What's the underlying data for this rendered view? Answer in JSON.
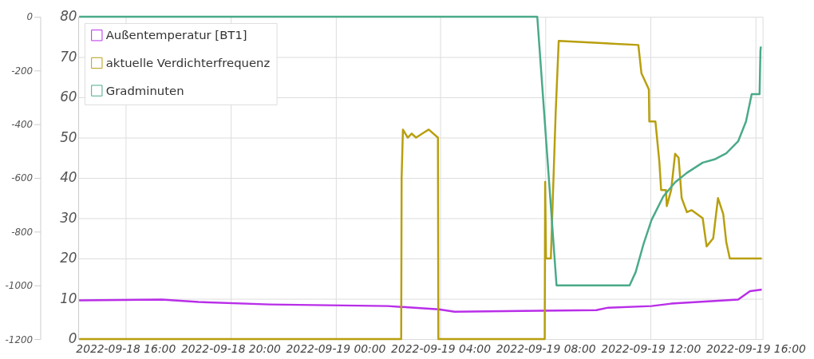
{
  "chart_data": {
    "type": "line",
    "xlim": [
      "2022-09-18T14:12",
      "2022-09-19T16:16"
    ],
    "xticks": [
      {
        "value": "2022-09-18T16:00",
        "label": "2022-09-18 16:00"
      },
      {
        "value": "2022-09-18T20:00",
        "label": "2022-09-18 20:00"
      },
      {
        "value": "2022-09-19T00:00",
        "label": "2022-09-19 00:00"
      },
      {
        "value": "2022-09-19T04:00",
        "label": "2022-09-19 04:00"
      },
      {
        "value": "2022-09-19T08:00",
        "label": "2022-09-19 08:00"
      },
      {
        "value": "2022-09-19T12:00",
        "label": "2022-09-19 12:00"
      },
      {
        "value": "2022-09-19T16:00",
        "label": "2022-09-19 16:00"
      }
    ],
    "ylim": [
      0,
      80
    ],
    "yticks": [
      0,
      10,
      20,
      30,
      40,
      50,
      60,
      70,
      80
    ],
    "y2lim": [
      -1200,
      0
    ],
    "y2ticks": [
      -1200,
      -1000,
      -800,
      -600,
      -400,
      -200,
      0
    ],
    "grid": true,
    "legend": "top left",
    "marker": "none",
    "line_style": "solid",
    "series": [
      {
        "name": "Außentemperatur [BT1]",
        "color": "#b92ee8",
        "x": [
          "2022-09-18T14:14",
          "2022-09-18T17:23",
          "2022-09-18T18:47",
          "2022-09-18T21:29",
          "2022-09-19T01:59",
          "2022-09-19T02:30",
          "2022-09-19T03:56",
          "2022-09-19T04:32",
          "2022-09-19T07:05",
          "2022-09-19T09:56",
          "2022-09-19T10:23",
          "2022-09-19T12:02",
          "2022-09-19T12:47",
          "2022-09-19T15:20",
          "2022-09-19T15:47",
          "2022-09-19T16:14"
        ],
        "values": [
          9.6,
          9.8,
          9.2,
          8.6,
          8.2,
          8.0,
          7.4,
          6.8,
          7.0,
          7.2,
          7.8,
          8.2,
          8.8,
          9.8,
          11.9,
          12.3
        ]
      },
      {
        "name": "aktuelle Verdichterfrequenz",
        "color": "#b89f0e",
        "x": [
          "2022-09-18T14:14",
          "2022-09-19T02:30",
          "2022-09-19T02:31",
          "2022-09-19T02:34",
          "2022-09-19T02:45",
          "2022-09-19T02:54",
          "2022-09-19T03:04",
          "2022-09-19T03:18",
          "2022-09-19T03:33",
          "2022-09-19T03:54",
          "2022-09-19T03:55",
          "2022-09-19T07:58",
          "2022-09-19T07:59",
          "2022-09-19T08:01",
          "2022-09-19T08:12",
          "2022-09-19T08:23",
          "2022-09-19T08:30",
          "2022-09-19T11:32",
          "2022-09-19T11:39",
          "2022-09-19T11:56",
          "2022-09-19T11:57",
          "2022-09-19T12:11",
          "2022-09-19T12:20",
          "2022-09-19T12:24",
          "2022-09-19T12:35",
          "2022-09-19T12:37",
          "2022-09-19T12:47",
          "2022-09-19T12:56",
          "2022-09-19T13:04",
          "2022-09-19T13:11",
          "2022-09-19T13:23",
          "2022-09-19T13:34",
          "2022-09-19T13:59",
          "2022-09-19T14:08",
          "2022-09-19T14:23",
          "2022-09-19T14:34",
          "2022-09-19T14:46",
          "2022-09-19T14:53",
          "2022-09-19T15:01",
          "2022-09-19T16:14"
        ],
        "values": [
          0,
          0,
          40,
          52,
          50,
          51,
          50,
          51,
          52,
          50,
          0,
          0,
          39,
          20,
          20,
          56,
          74,
          73,
          66,
          62,
          54,
          54,
          44,
          37,
          37,
          33,
          37,
          46,
          45,
          35,
          31.5,
          32,
          30,
          23,
          25,
          35,
          31,
          24,
          20,
          20
        ]
      },
      {
        "name": "Gradminuten",
        "color": "#4aaa88",
        "axis": "y2",
        "x": [
          "2022-09-18T14:14",
          "2022-09-19T07:41",
          "2022-09-19T08:25",
          "2022-09-19T11:12",
          "2022-09-19T11:26",
          "2022-09-19T11:44",
          "2022-09-19T12:02",
          "2022-09-19T12:29",
          "2022-09-19T12:56",
          "2022-09-19T13:23",
          "2022-09-19T13:59",
          "2022-09-19T14:26",
          "2022-09-19T14:53",
          "2022-09-19T15:20",
          "2022-09-19T15:38",
          "2022-09-19T15:51",
          "2022-09-19T16:09",
          "2022-09-19T16:11",
          "2022-09-19T16:12"
        ],
        "values": [
          0,
          0,
          -1000,
          -1000,
          -950,
          -845,
          -757,
          -669,
          -616,
          -581,
          -543,
          -531,
          -508,
          -464,
          -390,
          -288,
          -288,
          -126,
          -111
        ]
      }
    ]
  }
}
